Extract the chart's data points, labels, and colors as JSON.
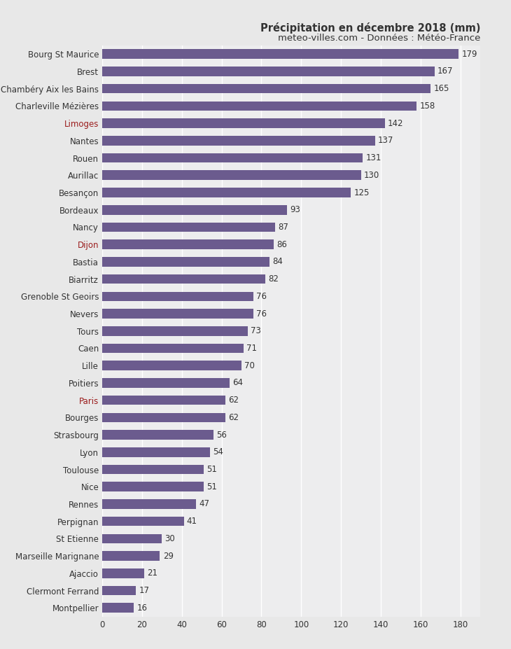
{
  "title_line1": "Précipitation en décembre 2018 (mm)",
  "title_line2": "meteo-villes.com - Données : Météo-France",
  "cities": [
    "Bourg St Maurice",
    "Brest",
    "Chambéry Aix les Bains",
    "Charleville Mézières",
    "Limoges",
    "Nantes",
    "Rouen",
    "Aurillac",
    "Besançon",
    "Bordeaux",
    "Nancy",
    "Dijon",
    "Bastia",
    "Biarritz",
    "Grenoble St Geoirs",
    "Nevers",
    "Tours",
    "Caen",
    "Lille",
    "Poitiers",
    "Paris",
    "Bourges",
    "Strasbourg",
    "Lyon",
    "Toulouse",
    "Nice",
    "Rennes",
    "Perpignan",
    "St Etienne",
    "Marseille Marignane",
    "Ajaccio",
    "Clermont Ferrand",
    "Montpellier"
  ],
  "values": [
    179,
    167,
    165,
    158,
    142,
    137,
    131,
    130,
    125,
    93,
    87,
    86,
    84,
    82,
    76,
    76,
    73,
    71,
    70,
    64,
    62,
    62,
    56,
    54,
    51,
    51,
    47,
    41,
    30,
    29,
    21,
    17,
    16
  ],
  "bar_color": "#6b5b8e",
  "bg_color": "#e8e8e8",
  "plot_bg_color": "#ededee",
  "grid_color": "#ffffff",
  "label_color_default": "#333333",
  "label_color_highlight": "#9b1c1c",
  "highlight_cities": [
    "Limoges",
    "Dijon",
    "Paris"
  ],
  "xlim": [
    0,
    190
  ],
  "xticks": [
    0,
    20,
    40,
    60,
    80,
    100,
    120,
    140,
    160,
    180
  ],
  "value_fontsize": 8.5,
  "label_fontsize": 8.5,
  "title_fontsize1": 10.5,
  "title_fontsize2": 9.5,
  "bar_height": 0.55
}
